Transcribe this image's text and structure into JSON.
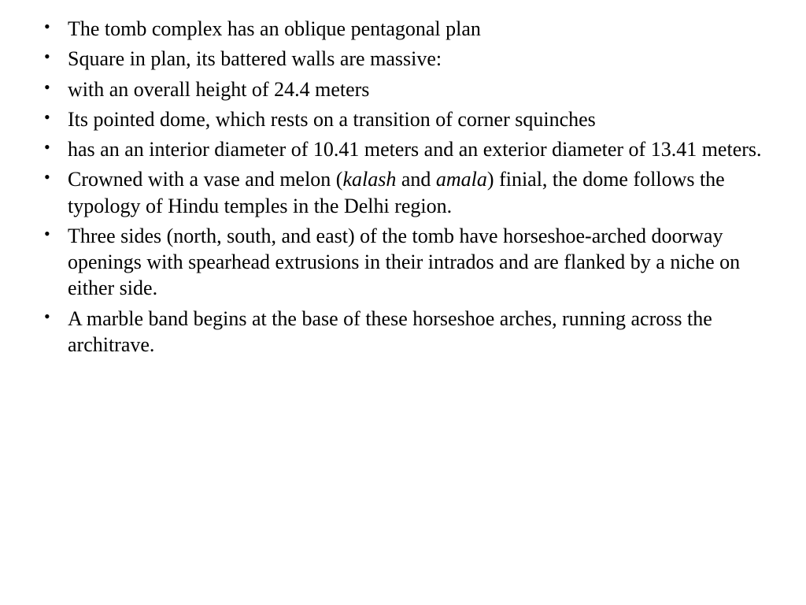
{
  "slide": {
    "bullets": [
      {
        "text": "The tomb complex has an oblique pentagonal plan"
      },
      {
        "text": "Square in plan, its battered walls are massive:"
      },
      {
        "text": " with an overall height of 24.4 meters"
      },
      {
        "text": "Its pointed dome, which rests on a transition of corner squinches"
      },
      {
        "text": "has an an interior diameter of 10.41 meters and an exterior diameter of 13.41 meters."
      },
      {
        "prefix": "Crowned with a vase and melon (",
        "italic1": "kalash",
        "mid": " and ",
        "italic2": "amala",
        "suffix": ") finial, the dome follows the typology of Hindu temples in the Delhi region."
      },
      {
        "text": "Three sides (north, south, and east) of the tomb have horseshoe-arched doorway openings with spearhead extrusions in their intrados and are flanked by a niche on either side."
      },
      {
        "text": "A marble band begins at the base of these horseshoe arches, running across the architrave."
      }
    ],
    "typography": {
      "font_family": "Palatino Linotype, Book Antiqua, Palatino, serif",
      "font_size_pt": 20,
      "text_color": "#000000",
      "background_color": "#ffffff",
      "bullet_char": "•",
      "line_height": 1.28
    }
  }
}
